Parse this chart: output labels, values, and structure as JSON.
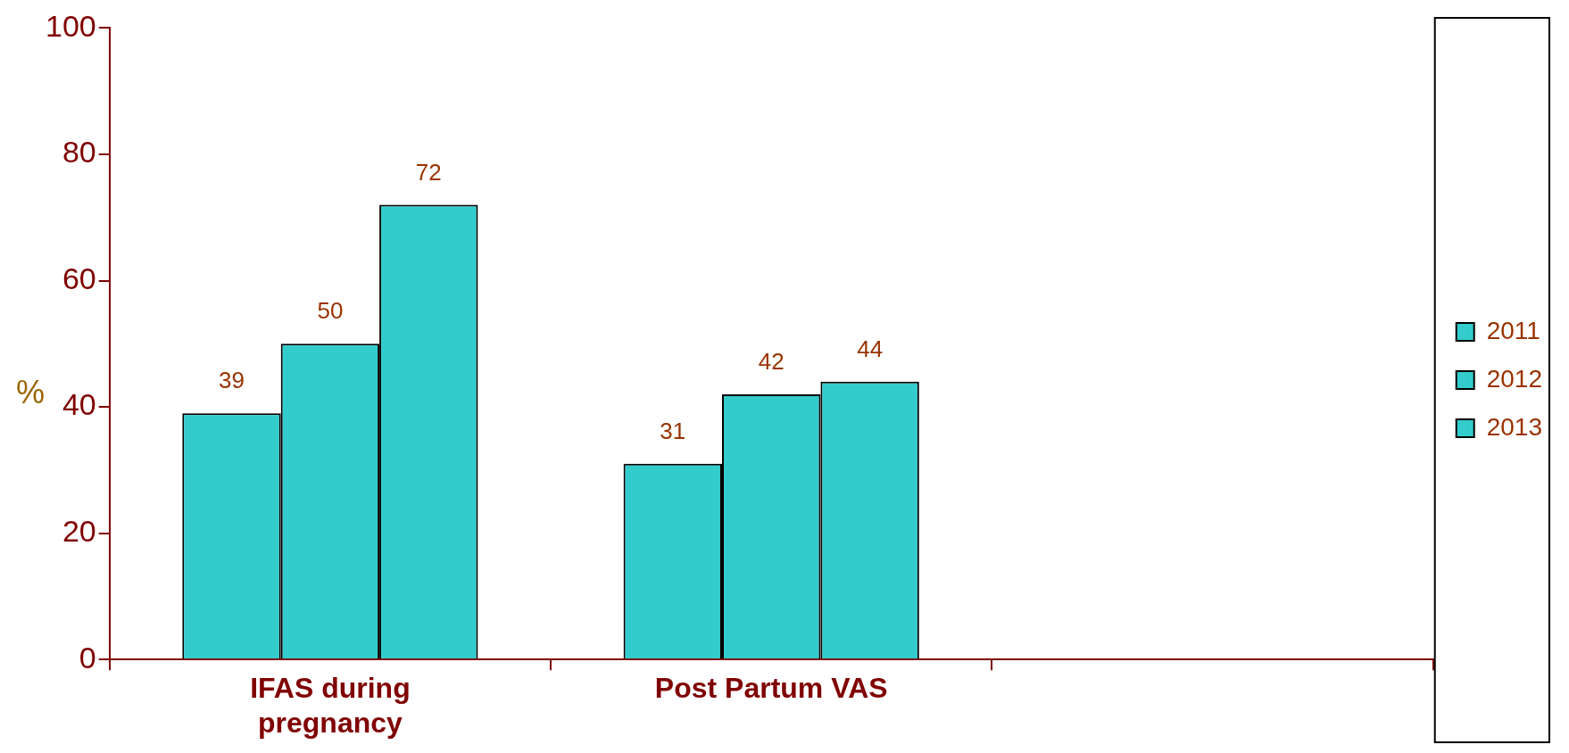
{
  "chart_data": {
    "type": "bar",
    "ylabel": "%",
    "categories": [
      "IFAS during pregnancy",
      "Post Partum VAS",
      null
    ],
    "series": [
      {
        "name": "2011",
        "color": "#33cccc",
        "values": [
          39,
          31,
          null
        ]
      },
      {
        "name": "2012",
        "color": "#33cccc",
        "values": [
          50,
          42,
          null
        ]
      },
      {
        "name": "2013",
        "color": "#33cccc",
        "values": [
          72,
          44,
          null
        ]
      }
    ],
    "ylim": [
      0,
      100
    ],
    "yticks": [
      0,
      20,
      40,
      60,
      80,
      100
    ],
    "grid": false,
    "legend": "right",
    "data_labels": true
  }
}
